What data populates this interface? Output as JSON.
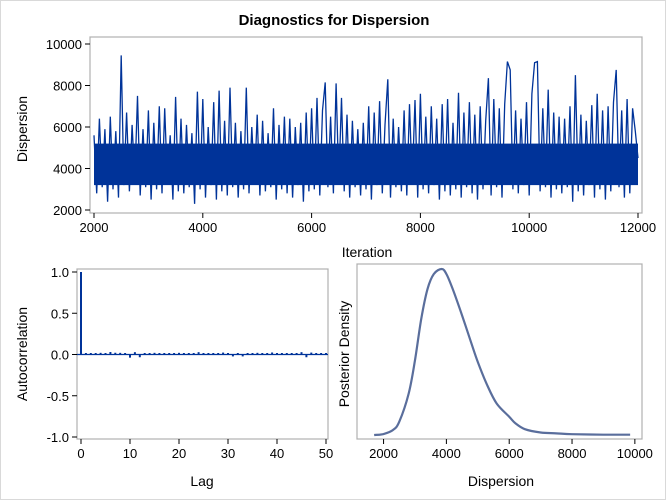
{
  "title": "Diagnostics for Dispersion",
  "chart_data": [
    {
      "type": "line",
      "name": "trace",
      "xlabel": "Iteration",
      "ylabel": "Dispersion",
      "xlim": [
        2000,
        12000
      ],
      "ylim": [
        2000,
        10000
      ],
      "xticks": [
        "2000",
        "4000",
        "6000",
        "8000",
        "10000",
        "12000"
      ],
      "yticks": [
        "2000",
        "4000",
        "6000",
        "8000",
        "10000"
      ],
      "color": "#003399",
      "x_start": 2000,
      "x_step": 50,
      "values": [
        5600,
        2800,
        6400,
        3100,
        5900,
        2400,
        6500,
        3000,
        5800,
        2600,
        9450,
        3200,
        6700,
        2900,
        6100,
        3400,
        7500,
        2700,
        5900,
        3100,
        6800,
        2500,
        6200,
        3000,
        7000,
        2800,
        6900,
        3300,
        5600,
        2500,
        7450,
        2900,
        6400,
        2800,
        6100,
        3100,
        5700,
        2300,
        7700,
        3000,
        7350,
        2600,
        6000,
        3200,
        7200,
        2500,
        7750,
        2900,
        6300,
        2700,
        7900,
        3100,
        6200,
        2600,
        5800,
        3000,
        7900,
        2800,
        6000,
        3300,
        6600,
        2700,
        6300,
        2900,
        5700,
        3100,
        6900,
        2500,
        6100,
        3000,
        6500,
        2800,
        6400,
        2600,
        6000,
        3200,
        6200,
        2400,
        6700,
        2900,
        6900,
        3000,
        7400,
        2700,
        6800,
        8150,
        3100,
        6500,
        2800,
        8100,
        3300,
        7400,
        2900,
        6600,
        2600,
        6300,
        3100,
        5900,
        2700,
        6200,
        3000,
        7000,
        2500,
        6700,
        3200,
        7250,
        2800,
        6100,
        8300,
        2600,
        6400,
        3100,
        6000,
        2900,
        6800,
        2700,
        7100,
        3300,
        7300,
        2600,
        7600,
        3000,
        6500,
        2800,
        7000,
        3200,
        6400,
        2500,
        7100,
        2900,
        7350,
        2700,
        6200,
        3000,
        7650,
        2600,
        6700,
        3100,
        7200,
        2800,
        6600,
        2500,
        7000,
        3000,
        6300,
        8350,
        2700,
        7350,
        3100,
        6900,
        2600,
        7100,
        9150,
        8750,
        3000,
        6800,
        2800,
        6400,
        3200,
        7200,
        2700,
        7600,
        9100,
        9150,
        2900,
        6900,
        3100,
        7800,
        2600,
        6700,
        3000,
        6500,
        2800,
        6400,
        3100,
        7000,
        2400,
        8500,
        2900,
        6600,
        2700,
        6300,
        3200,
        7050,
        2600,
        7600,
        3000,
        6800,
        2500,
        7000,
        2900,
        7200,
        8750,
        3100,
        6800,
        2600,
        7350,
        2800,
        6900,
        5800,
        4500
      ]
    },
    {
      "type": "bar",
      "name": "autocorrelation",
      "xlabel": "Lag",
      "ylabel": "Autocorrelation",
      "xlim": [
        0,
        50
      ],
      "ylim": [
        -1,
        1
      ],
      "xticks": [
        "0",
        "10",
        "20",
        "30",
        "40",
        "50"
      ],
      "yticks": [
        "-1.0",
        "-0.5",
        "0.0",
        "0.5",
        "1.0"
      ],
      "color": "#003399",
      "lags": [
        0,
        1,
        2,
        3,
        4,
        5,
        6,
        7,
        8,
        9,
        10,
        11,
        12,
        13,
        14,
        15,
        16,
        17,
        18,
        19,
        20,
        21,
        22,
        23,
        24,
        25,
        26,
        27,
        28,
        29,
        30,
        31,
        32,
        33,
        34,
        35,
        36,
        37,
        38,
        39,
        40,
        41,
        42,
        43,
        44,
        45,
        46,
        47,
        48,
        49,
        50
      ],
      "values": [
        1.0,
        0.0,
        0.0,
        0.0,
        0.002,
        0.0,
        0.012,
        0.003,
        0.002,
        0.0,
        -0.02,
        0.01,
        -0.015,
        0.0,
        0.0,
        0.002,
        0.0,
        0.0,
        0.0,
        0.0,
        0.002,
        0.0,
        0.0,
        0.0,
        0.01,
        0.0,
        0.0,
        0.0,
        0.0,
        0.005,
        0.0,
        -0.005,
        0.0,
        -0.005,
        0.0,
        0.0,
        0.002,
        0.0,
        0.0,
        0.006,
        0.0,
        0.0,
        0.0,
        0.0,
        0.0,
        0.01,
        -0.015,
        0.005,
        0.0,
        0.0,
        0.0
      ]
    },
    {
      "type": "line",
      "name": "density",
      "xlabel": "Dispersion",
      "ylabel": "Posterior Density",
      "xlim": [
        1600,
        10100
      ],
      "xticks": [
        "2000",
        "4000",
        "6000",
        "8000",
        "10000"
      ],
      "color": "#5a6e9c",
      "x": [
        1700,
        2000,
        2300,
        2500,
        2800,
        3000,
        3200,
        3400,
        3600,
        3850,
        4000,
        4200,
        4500,
        4800,
        5000,
        5300,
        5600,
        6000,
        6200,
        6500,
        7000,
        7500,
        8000,
        9000,
        9850
      ],
      "y": [
        0.0,
        0.006,
        0.03,
        0.08,
        0.25,
        0.45,
        0.7,
        0.88,
        0.97,
        1.0,
        0.97,
        0.88,
        0.72,
        0.55,
        0.44,
        0.3,
        0.19,
        0.11,
        0.07,
        0.035,
        0.015,
        0.01,
        0.005,
        0.002,
        0.002
      ]
    }
  ]
}
